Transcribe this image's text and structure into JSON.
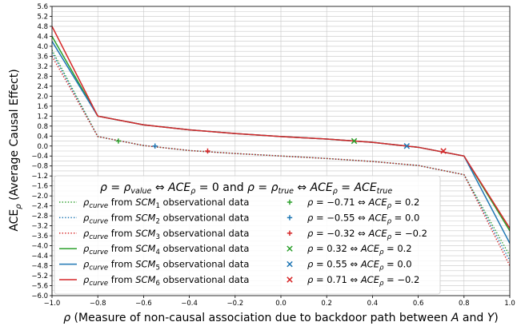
{
  "chart_data": {
    "type": "line",
    "xlabel": "ρ (Measure of non-causal association due to backdoor path between A and Y)",
    "ylabel": "ACEρ (Average Causal Effect)",
    "xlim": [
      -1.0,
      1.0
    ],
    "ylim": [
      -6.0,
      5.6
    ],
    "xticks": [
      -1.0,
      -0.8,
      -0.6,
      -0.4,
      -0.2,
      0.0,
      0.2,
      0.4,
      0.6,
      0.8,
      1.0
    ],
    "xtick_labels": [
      "−1.0",
      "−0.8",
      "−0.6",
      "−0.4",
      "−0.2",
      "0.0",
      "0.2",
      "0.4",
      "0.6",
      "0.8",
      "1.0"
    ],
    "yticks": [
      5.6,
      5.2,
      4.8,
      4.4,
      4.0,
      3.6,
      3.2,
      2.8,
      2.4,
      2.0,
      1.6,
      1.2,
      0.8,
      0.4,
      0.0,
      -0.4,
      -0.8,
      -1.2,
      -1.6,
      -2.0,
      -2.4,
      -2.8,
      -3.2,
      -3.6,
      -4.0,
      -4.4,
      -4.8,
      -5.2,
      -5.6,
      -6.0
    ],
    "ytick_labels": [
      "5.6",
      "5.2",
      "4.8",
      "4.4",
      "4.0",
      "3.6",
      "3.2",
      "2.8",
      "2.4",
      "2.0",
      "1.6",
      "1.2",
      "0.8",
      "0.4",
      "0.0",
      "−0.4",
      "−0.8",
      "−1.2",
      "−1.6",
      "−2.0",
      "−2.4",
      "−2.8",
      "−3.2",
      "−3.6",
      "−4.0",
      "−4.4",
      "−4.8",
      "−5.2",
      "−5.6",
      "−6.0"
    ],
    "y_minor_step": 0.2,
    "grid": true,
    "legend_title": "ρ = ρvalue ⇔ ACEρ = 0 and ρ = ρtrue ⇔ ACEρ = ACEtrue",
    "legend_placement": "bottom-center",
    "series": [
      {
        "name": "ρcurve from SCM1 observational data",
        "color": "#2ca02c",
        "style": "dotted",
        "x": [
          -1.0,
          -0.8,
          -0.6,
          -0.4,
          -0.2,
          0.0,
          0.2,
          0.4,
          0.6,
          0.8,
          1.0
        ],
        "y": [
          3.85,
          0.38,
          0.02,
          -0.18,
          -0.3,
          -0.4,
          -0.5,
          -0.62,
          -0.78,
          -1.15,
          -4.4
        ]
      },
      {
        "name": "ρcurve from SCM2 observational data",
        "color": "#1f77b4",
        "style": "dotted",
        "x": [
          -1.0,
          -0.8,
          -0.6,
          -0.4,
          -0.2,
          0.0,
          0.2,
          0.4,
          0.6,
          0.8,
          1.0
        ],
        "y": [
          3.75,
          0.38,
          0.02,
          -0.18,
          -0.3,
          -0.4,
          -0.5,
          -0.62,
          -0.78,
          -1.15,
          -4.6
        ]
      },
      {
        "name": "ρcurve from SCM3 observational data",
        "color": "#d62728",
        "style": "dotted",
        "x": [
          -1.0,
          -0.8,
          -0.6,
          -0.4,
          -0.2,
          0.0,
          0.2,
          0.4,
          0.6,
          0.8,
          1.0
        ],
        "y": [
          3.6,
          0.38,
          0.02,
          -0.18,
          -0.3,
          -0.4,
          -0.5,
          -0.62,
          -0.78,
          -1.15,
          -4.8
        ]
      },
      {
        "name": "ρcurve from SCM4 observational data",
        "color": "#2ca02c",
        "style": "solid",
        "x": [
          -1.0,
          -0.8,
          -0.6,
          -0.4,
          -0.2,
          0.0,
          0.2,
          0.4,
          0.6,
          0.8,
          1.0
        ],
        "y": [
          4.4,
          1.2,
          0.85,
          0.65,
          0.5,
          0.38,
          0.28,
          0.15,
          -0.05,
          -0.4,
          -3.4
        ]
      },
      {
        "name": "ρcurve from SCM5 observational data",
        "color": "#1f77b4",
        "style": "solid",
        "x": [
          -1.0,
          -0.8,
          -0.6,
          -0.4,
          -0.2,
          0.0,
          0.2,
          0.4,
          0.6,
          0.8,
          1.0
        ],
        "y": [
          4.2,
          1.2,
          0.85,
          0.65,
          0.5,
          0.38,
          0.28,
          0.15,
          -0.05,
          -0.4,
          -3.9
        ]
      },
      {
        "name": "ρcurve from SCM6 observational data",
        "color": "#d62728",
        "style": "solid",
        "x": [
          -1.0,
          -0.8,
          -0.6,
          -0.4,
          -0.2,
          0.0,
          0.2,
          0.4,
          0.6,
          0.8,
          1.0
        ],
        "y": [
          4.8,
          1.2,
          0.85,
          0.65,
          0.5,
          0.38,
          0.28,
          0.15,
          -0.05,
          -0.4,
          -3.3
        ]
      }
    ],
    "markers": [
      {
        "label": "ρ = −0.71 ⇔ ACEρ = 0.2",
        "color": "#2ca02c",
        "symbol": "+",
        "x": -0.71,
        "y": 0.2
      },
      {
        "label": "ρ = −0.55 ⇔ ACEρ = 0.0",
        "color": "#1f77b4",
        "symbol": "+",
        "x": -0.55,
        "y": 0.0
      },
      {
        "label": "ρ = −0.32 ⇔ ACEρ = −0.2",
        "color": "#d62728",
        "symbol": "+",
        "x": -0.32,
        "y": -0.2
      },
      {
        "label": "ρ = 0.32 ⇔ ACEρ = 0.2",
        "color": "#2ca02c",
        "symbol": "x",
        "x": 0.32,
        "y": 0.2
      },
      {
        "label": "ρ = 0.55 ⇔ ACEρ = 0.0",
        "color": "#1f77b4",
        "symbol": "x",
        "x": 0.55,
        "y": 0.0
      },
      {
        "label": "ρ = 0.71 ⇔ ACEρ = −0.2",
        "color": "#d62728",
        "symbol": "x",
        "x": 0.71,
        "y": -0.2
      }
    ]
  }
}
